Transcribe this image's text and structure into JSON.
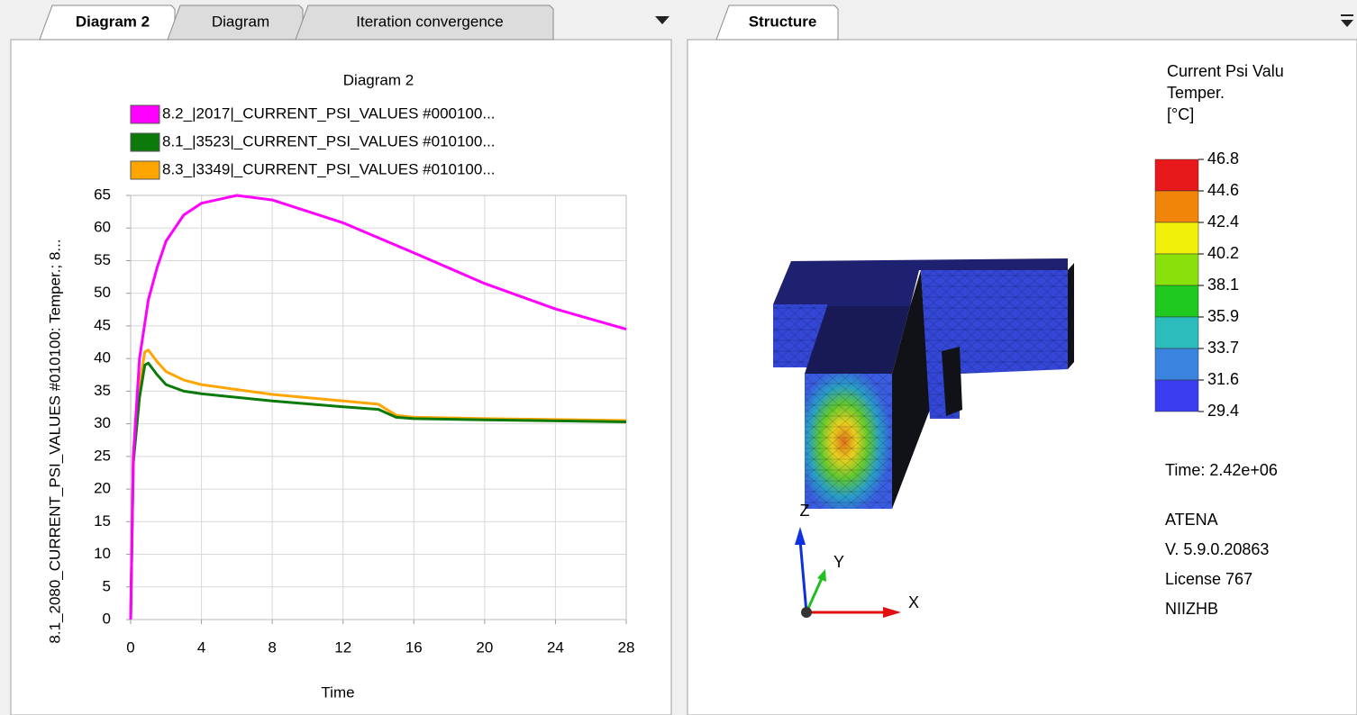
{
  "left_tabs": [
    "Diagram 2",
    "Diagram",
    "Iteration convergence"
  ],
  "right_tabs": [
    "Structure"
  ],
  "chart_data": {
    "type": "line",
    "title": "Diagram 2",
    "x_label": "Time",
    "y_label": "8.1_2080_CURRENT_PSI_VALUES #010100: Temper.; 8...",
    "xlim": [
      0,
      28
    ],
    "ylim": [
      0,
      65
    ],
    "xticks": [
      0,
      4,
      8,
      12,
      16,
      20,
      24,
      28
    ],
    "yticks": [
      0,
      5,
      10,
      15,
      20,
      25,
      30,
      35,
      40,
      45,
      50,
      55,
      60,
      65
    ],
    "grid": true,
    "series": [
      {
        "name": "8.2_|2017|_CURRENT_PSI_VALUES #000100...",
        "color": "#ff00ff",
        "x": [
          0,
          0.15,
          0.5,
          1,
          1.5,
          2,
          3,
          4,
          6,
          8,
          12,
          16,
          20,
          24,
          28
        ],
        "values": [
          0,
          25,
          40,
          49,
          54,
          58,
          62,
          63.8,
          65,
          64.3,
          60.8,
          56.2,
          51.5,
          47.6,
          44.5
        ]
      },
      {
        "name": "8.1_|3523|_CURRENT_PSI_VALUES #010100...",
        "color": "#0b7a0b",
        "x": [
          0,
          0.15,
          0.5,
          0.8,
          1,
          1.5,
          2,
          3,
          4,
          8,
          12,
          14,
          15,
          16,
          20,
          28
        ],
        "values": [
          0,
          24,
          34,
          39,
          39.3,
          37.5,
          36,
          35,
          34.6,
          33.5,
          32.6,
          32.2,
          31,
          30.8,
          30.6,
          30.3
        ]
      },
      {
        "name": "8.3_|3349|_CURRENT_PSI_VALUES #010100...",
        "color": "#ffa500",
        "x": [
          0,
          0.15,
          0.5,
          0.8,
          1,
          1.5,
          2,
          3,
          4,
          8,
          12,
          14,
          15,
          16,
          20,
          28
        ],
        "values": [
          0,
          25,
          36,
          41,
          41.3,
          39.5,
          38,
          36.7,
          36,
          34.5,
          33.5,
          33,
          31.3,
          31,
          30.8,
          30.5
        ]
      }
    ]
  },
  "structure": {
    "legend_title": [
      "Current Psi Valu",
      "Temper.",
      "[°C]"
    ],
    "scale_values": [
      46.8,
      44.6,
      42.4,
      40.2,
      38.1,
      35.9,
      33.7,
      31.6,
      29.4
    ],
    "scale_colors": [
      "#e8191a",
      "#f0850a",
      "#f0f00a",
      "#8ae00a",
      "#1ec81e",
      "#2cbcbc",
      "#3a84e0",
      "#3a3cf0"
    ],
    "time": "Time: 2.42e+06",
    "info": [
      "ATENA",
      "V. 5.9.0.20863",
      "License 767",
      "NIIZHB"
    ],
    "axes": {
      "z": "Z",
      "y": "Y",
      "x": "X"
    }
  }
}
